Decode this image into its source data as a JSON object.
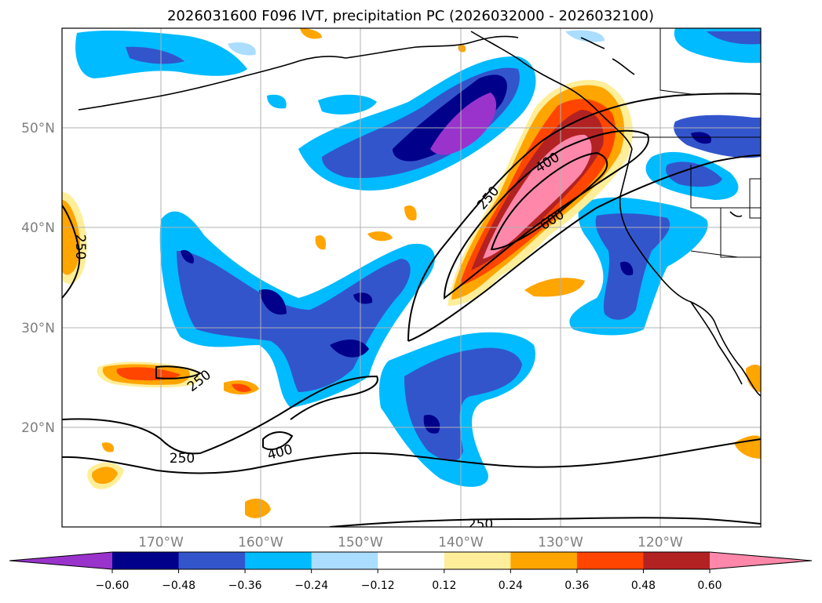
{
  "title": "2026031600 F096 IVT, precipitation PC (2026032000 - 2026032100)",
  "map": {
    "latitude_labels": [
      "50°N",
      "40°N",
      "30°N",
      "20°N"
    ],
    "longitude_labels": [
      "170°W",
      "160°W",
      "150°W",
      "140°W",
      "130°W",
      "120°W"
    ],
    "contour_labels": [
      "250",
      "250",
      "400",
      "600",
      "250",
      "250",
      "400",
      "250"
    ]
  },
  "colorbar": {
    "ticks": [
      "−0.60",
      "−0.48",
      "−0.36",
      "−0.24",
      "−0.12",
      "0.12",
      "0.24",
      "0.36",
      "0.48",
      "0.60"
    ],
    "colors": [
      "#9933cc",
      "#00008b",
      "#3355cc",
      "#00bbff",
      "#aaddff",
      "#ffffff",
      "#ffee99",
      "#ffa500",
      "#ff4500",
      "#b22222",
      "#ff88aa"
    ]
  }
}
